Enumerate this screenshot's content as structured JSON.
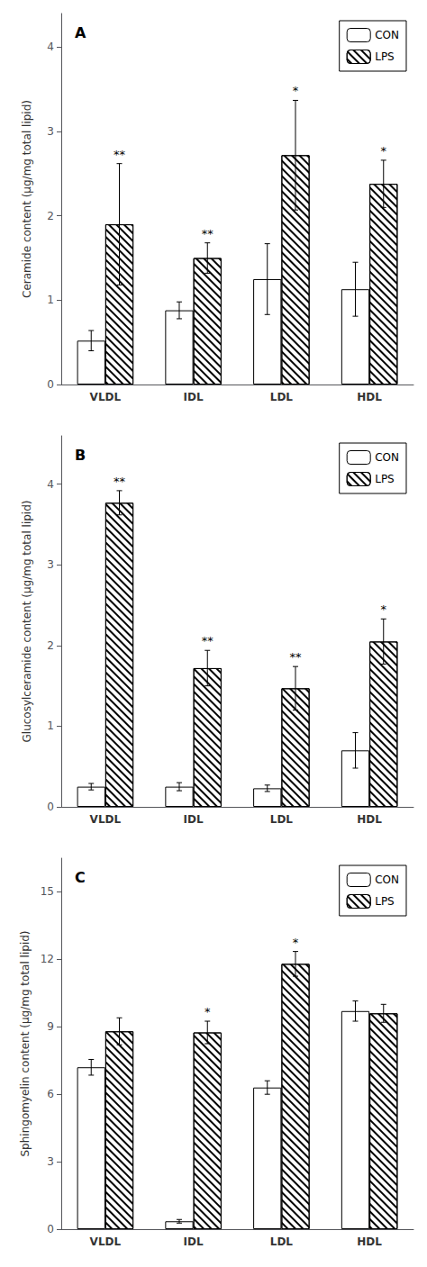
{
  "chart_data": [
    {
      "type": "bar",
      "title": "A",
      "ylabel": "Ceramide content (μg/mg total lipid)",
      "categories": [
        "VLDL",
        "IDL",
        "LDL",
        "HDL"
      ],
      "series": [
        {
          "name": "CON",
          "color": "#ffffff",
          "values": [
            0.52,
            0.88,
            1.25,
            1.13
          ],
          "errors": [
            0.12,
            0.1,
            0.42,
            0.32
          ]
        },
        {
          "name": "LPS",
          "color": "#ffffff",
          "values": [
            1.9,
            1.5,
            2.72,
            2.38
          ],
          "errors": [
            0.72,
            0.18,
            0.65,
            0.28
          ],
          "annotations": [
            "**",
            "**",
            "*",
            "*"
          ]
        }
      ],
      "ylim": [
        0,
        4.4
      ],
      "yticks": [
        0,
        1,
        2,
        3,
        4
      ],
      "grid": false,
      "legend": "upper right"
    },
    {
      "type": "bar",
      "title": "B",
      "ylabel": "Glucosylceramide content (μg/mg total lipid)",
      "categories": [
        "VLDL",
        "IDL",
        "LDL",
        "HDL"
      ],
      "series": [
        {
          "name": "CON",
          "color": "#ffffff",
          "values": [
            0.25,
            0.25,
            0.23,
            0.7
          ],
          "errors": [
            0.04,
            0.05,
            0.04,
            0.22
          ]
        },
        {
          "name": "LPS",
          "color": "#ffffff",
          "values": [
            3.77,
            1.72,
            1.47,
            2.05
          ],
          "errors": [
            0.15,
            0.22,
            0.27,
            0.28
          ],
          "annotations": [
            "**",
            "**",
            "**",
            "*"
          ]
        }
      ],
      "ylim": [
        0,
        4.6
      ],
      "yticks": [
        0,
        1,
        2,
        3,
        4
      ],
      "grid": false,
      "legend": "upper right"
    },
    {
      "type": "bar",
      "title": "C",
      "ylabel": "Sphingomyelin content (μg/mg total lipid)",
      "categories": [
        "VLDL",
        "IDL",
        "LDL",
        "HDL"
      ],
      "series": [
        {
          "name": "CON",
          "color": "#ffffff",
          "values": [
            7.2,
            0.35,
            6.3,
            9.7
          ],
          "errors": [
            0.35,
            0.08,
            0.3,
            0.45
          ]
        },
        {
          "name": "LPS",
          "color": "#ffffff",
          "values": [
            8.8,
            8.75,
            11.8,
            9.6
          ],
          "errors": [
            0.6,
            0.5,
            0.55,
            0.4
          ],
          "annotations": [
            null,
            "*",
            "*",
            null
          ]
        }
      ],
      "ylim": [
        0,
        16.5
      ],
      "yticks": [
        0,
        3,
        6,
        9,
        12,
        15
      ],
      "grid": false,
      "legend": "upper right"
    }
  ]
}
